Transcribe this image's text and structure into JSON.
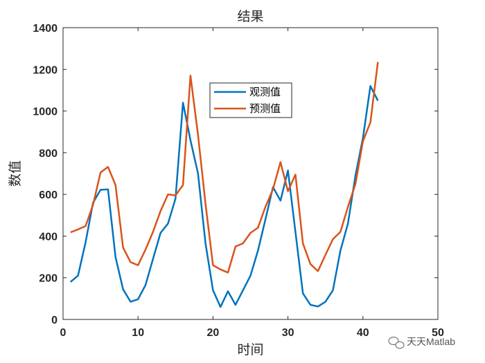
{
  "chart_data": {
    "type": "line",
    "title": "结果",
    "xlabel": "时间",
    "ylabel": "数值",
    "xlim": [
      0,
      50
    ],
    "ylim": [
      0,
      1400
    ],
    "xticks": [
      0,
      10,
      20,
      30,
      40,
      50
    ],
    "yticks": [
      0,
      200,
      400,
      600,
      800,
      1000,
      1200,
      1400
    ],
    "grid": false,
    "legend_position": "upper-center",
    "series": [
      {
        "name": "观测值",
        "color": "#0072BD",
        "x": [
          1,
          2,
          3,
          4,
          5,
          6,
          7,
          8,
          9,
          10,
          11,
          12,
          13,
          14,
          15,
          16,
          17,
          18,
          19,
          20,
          21,
          22,
          23,
          24,
          25,
          26,
          27,
          28,
          29,
          30,
          31,
          32,
          33,
          34,
          35,
          36,
          37,
          38,
          39,
          40,
          41,
          42
        ],
        "y": [
          180,
          210,
          370,
          560,
          622,
          624,
          300,
          145,
          85,
          97,
          165,
          290,
          415,
          460,
          580,
          1040,
          860,
          700,
          365,
          140,
          60,
          135,
          70,
          140,
          210,
          330,
          480,
          635,
          570,
          715,
          420,
          125,
          70,
          62,
          85,
          140,
          330,
          460,
          690,
          870,
          1120,
          1050
        ]
      },
      {
        "name": "预测值",
        "color": "#D95319",
        "x": [
          1,
          2,
          3,
          4,
          5,
          6,
          7,
          8,
          9,
          10,
          11,
          12,
          13,
          14,
          15,
          16,
          17,
          18,
          19,
          20,
          21,
          22,
          23,
          24,
          25,
          26,
          27,
          28,
          29,
          30,
          31,
          32,
          33,
          34,
          35,
          36,
          37,
          38,
          39,
          40,
          41,
          42
        ],
        "y": [
          418,
          432,
          448,
          550,
          705,
          732,
          645,
          345,
          275,
          260,
          335,
          420,
          520,
          600,
          595,
          645,
          1170,
          885,
          555,
          260,
          240,
          225,
          350,
          365,
          415,
          440,
          540,
          625,
          755,
          615,
          695,
          365,
          265,
          232,
          310,
          385,
          420,
          540,
          650,
          855,
          945,
          1235
        ]
      }
    ]
  },
  "watermark": {
    "icon": "wechat-icon",
    "text": "天天Matlab"
  }
}
